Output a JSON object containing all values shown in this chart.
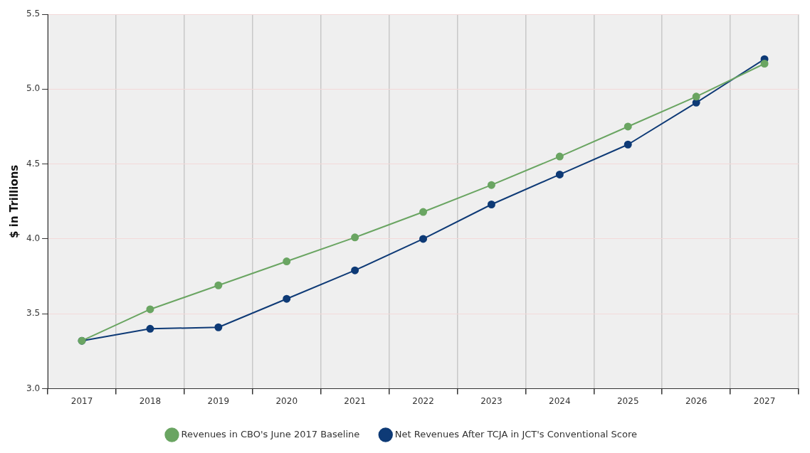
{
  "chart_data": {
    "type": "line",
    "ylabel": "$ in Trillions",
    "categories": [
      "2017",
      "2018",
      "2019",
      "2020",
      "2021",
      "2022",
      "2023",
      "2024",
      "2025",
      "2026",
      "2027"
    ],
    "series": [
      {
        "name": "Revenues in CBO's June 2017 Baseline",
        "color": "#6aa562",
        "values": [
          3.32,
          3.53,
          3.69,
          3.85,
          4.01,
          4.18,
          4.36,
          4.55,
          4.75,
          4.95,
          5.17
        ]
      },
      {
        "name": "Net Revenues After TCJA in JCT's Conventional Score",
        "color": "#0e3a76",
        "values": [
          3.32,
          3.4,
          3.41,
          3.6,
          3.79,
          4.0,
          4.23,
          4.43,
          4.63,
          4.91,
          5.2
        ]
      }
    ],
    "ylim": [
      3.0,
      5.5
    ],
    "yticks": [
      {
        "value": 3.0,
        "label": "3.0"
      },
      {
        "value": 3.5,
        "label": "3.5"
      },
      {
        "value": 4.0,
        "label": "4.0"
      },
      {
        "value": 4.5,
        "label": "4.5"
      },
      {
        "value": 5.0,
        "label": "5.0"
      },
      {
        "value": 5.5,
        "label": "5.5"
      }
    ],
    "grid": true,
    "legend": "bottom",
    "marker": "circle",
    "line_style": "solid"
  }
}
